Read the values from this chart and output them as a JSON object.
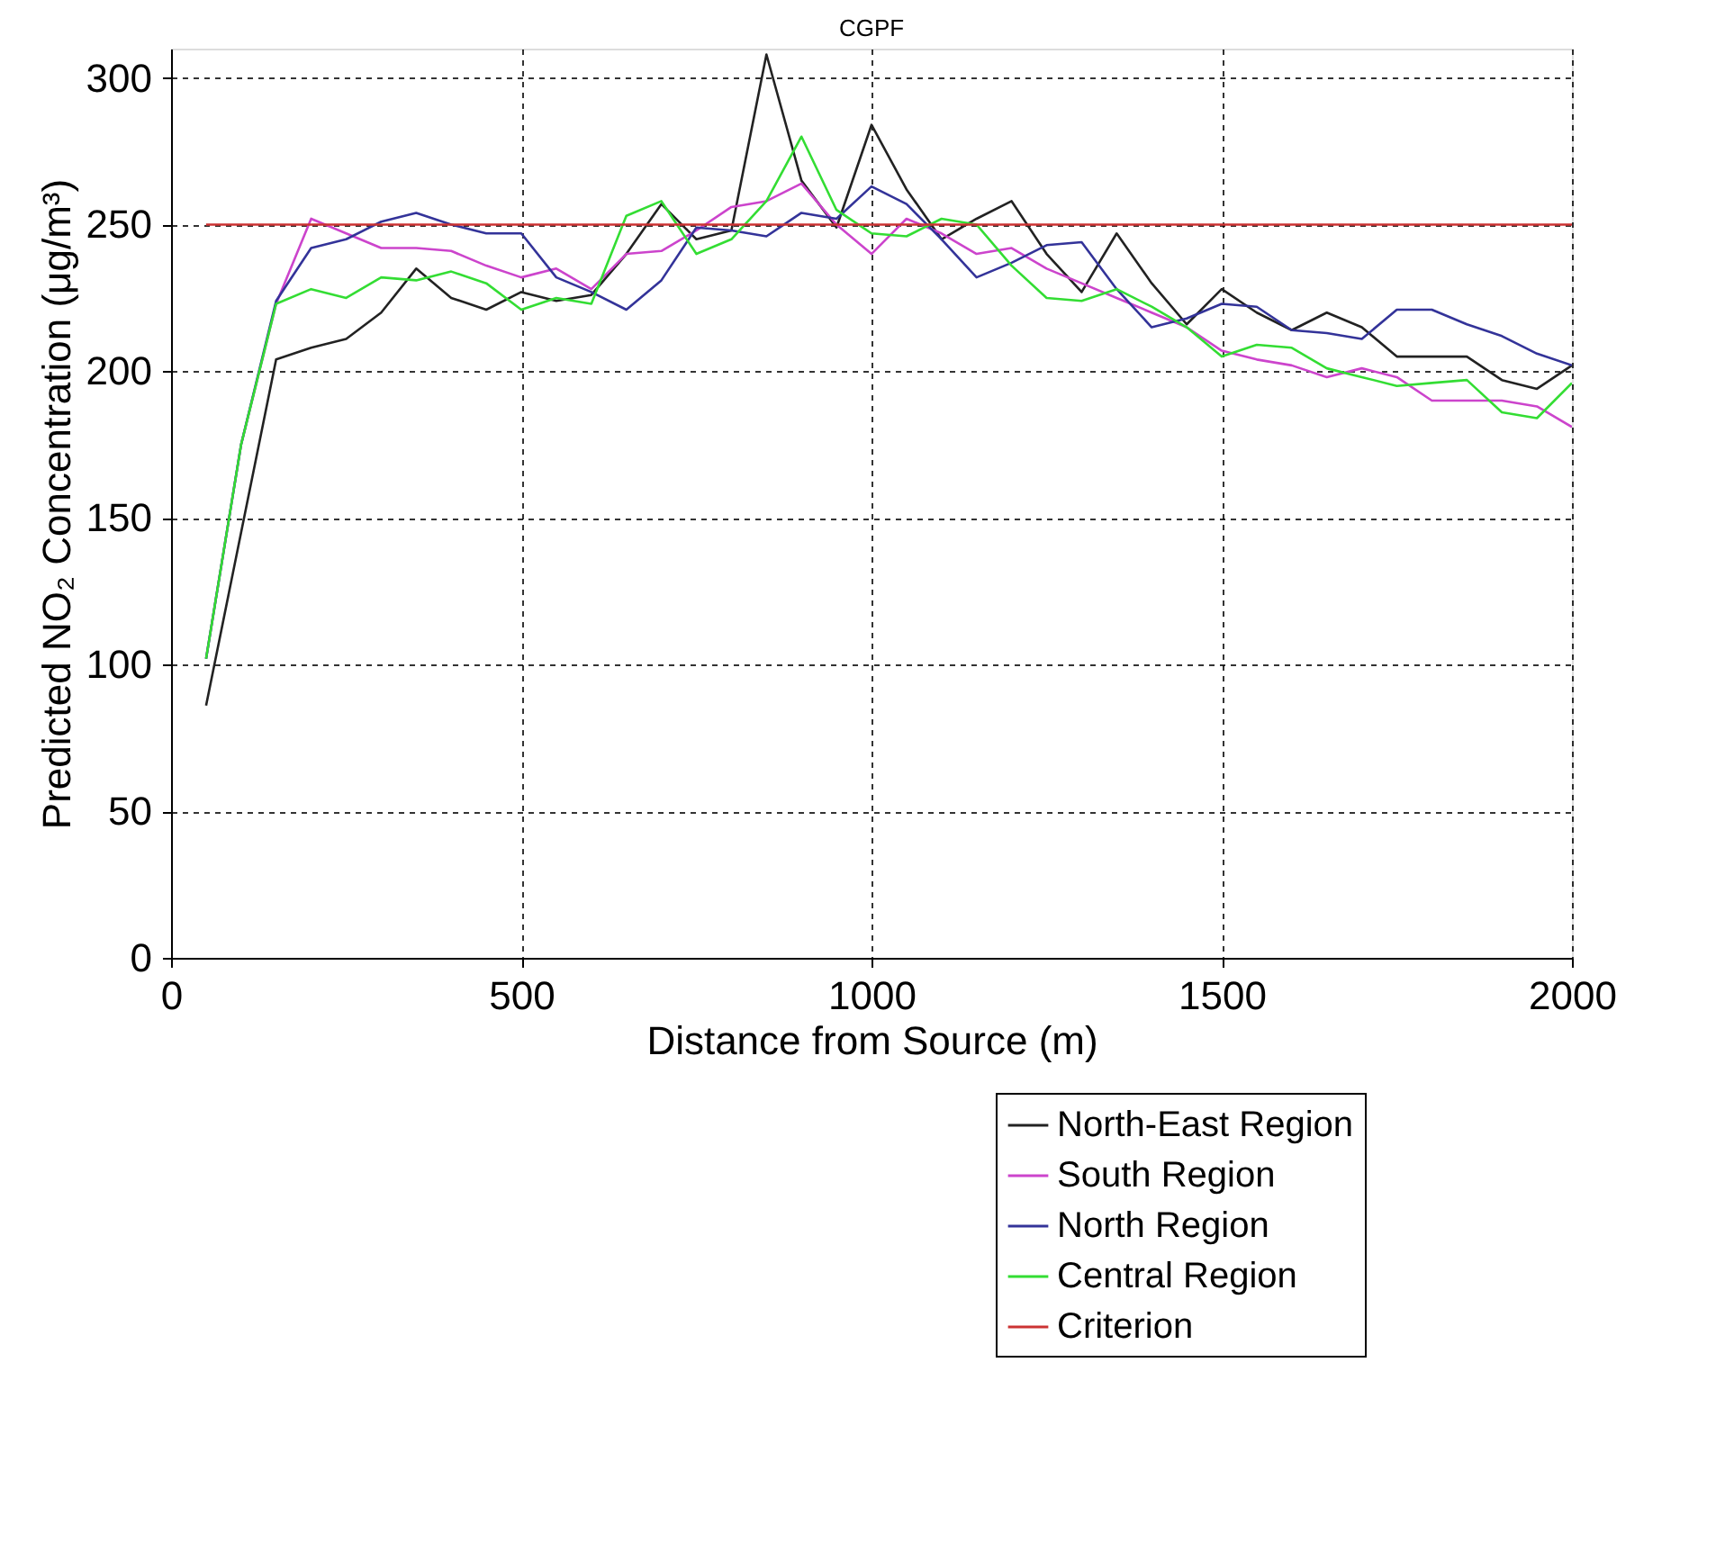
{
  "chart_data": {
    "type": "line",
    "title": "CGPF",
    "xlabel": "Distance from Source (m)",
    "ylabel": "Predicted NO₂ Concentration (μg/m³)",
    "x": [
      50,
      100,
      150,
      200,
      250,
      300,
      350,
      400,
      450,
      500,
      550,
      600,
      650,
      700,
      750,
      800,
      850,
      900,
      950,
      1000,
      1050,
      1100,
      1150,
      1200,
      1250,
      1300,
      1350,
      1400,
      1450,
      1500,
      1550,
      1600,
      1650,
      1700,
      1750,
      1800,
      1850,
      1900,
      1950,
      2000
    ],
    "series": [
      {
        "name": "North-East Region",
        "color": "#222222",
        "values": [
          86,
          145,
          204,
          208,
          211,
          220,
          235,
          225,
          221,
          227,
          224,
          226,
          240,
          257,
          245,
          248,
          308,
          265,
          249,
          284,
          262,
          245,
          252,
          258,
          240,
          227,
          247,
          230,
          216,
          228,
          220,
          214,
          220,
          215,
          205,
          205,
          205,
          197,
          194,
          202
        ]
      },
      {
        "name": "South Region",
        "color": "#cc44cc",
        "values": [
          102,
          175,
          223,
          252,
          247,
          242,
          242,
          241,
          236,
          232,
          235,
          228,
          240,
          241,
          248,
          256,
          258,
          264,
          250,
          240,
          252,
          247,
          240,
          242,
          235,
          230,
          225,
          220,
          215,
          207,
          204,
          202,
          198,
          201,
          198,
          190,
          190,
          190,
          188,
          181
        ]
      },
      {
        "name": "North Region",
        "color": "#333399",
        "values": [
          102,
          175,
          224,
          242,
          245,
          251,
          254,
          250,
          247,
          247,
          232,
          227,
          221,
          231,
          249,
          248,
          246,
          254,
          252,
          263,
          257,
          245,
          232,
          237,
          243,
          244,
          228,
          215,
          218,
          223,
          222,
          214,
          213,
          211,
          221,
          221,
          216,
          212,
          206,
          202
        ]
      },
      {
        "name": "Central Region",
        "color": "#33dd33",
        "values": [
          102,
          175,
          223,
          228,
          225,
          232,
          231,
          234,
          230,
          221,
          225,
          223,
          253,
          258,
          240,
          245,
          258,
          280,
          255,
          247,
          246,
          252,
          250,
          236,
          225,
          224,
          228,
          222,
          215,
          205,
          209,
          208,
          201,
          198,
          195,
          196,
          197,
          186,
          184,
          196
        ]
      },
      {
        "name": "Criterion",
        "color": "#cc3333",
        "x": [
          50,
          2000
        ],
        "values": [
          250,
          250
        ]
      }
    ],
    "xlim": [
      0,
      2000
    ],
    "xticks": [
      0,
      500,
      1000,
      1500,
      2000
    ],
    "ylim": [
      0,
      310
    ],
    "yticks": [
      0,
      50,
      100,
      150,
      200,
      250,
      300
    ],
    "grid": true,
    "legend": "bottom right",
    "line_style": "solid",
    "marker": "none"
  }
}
